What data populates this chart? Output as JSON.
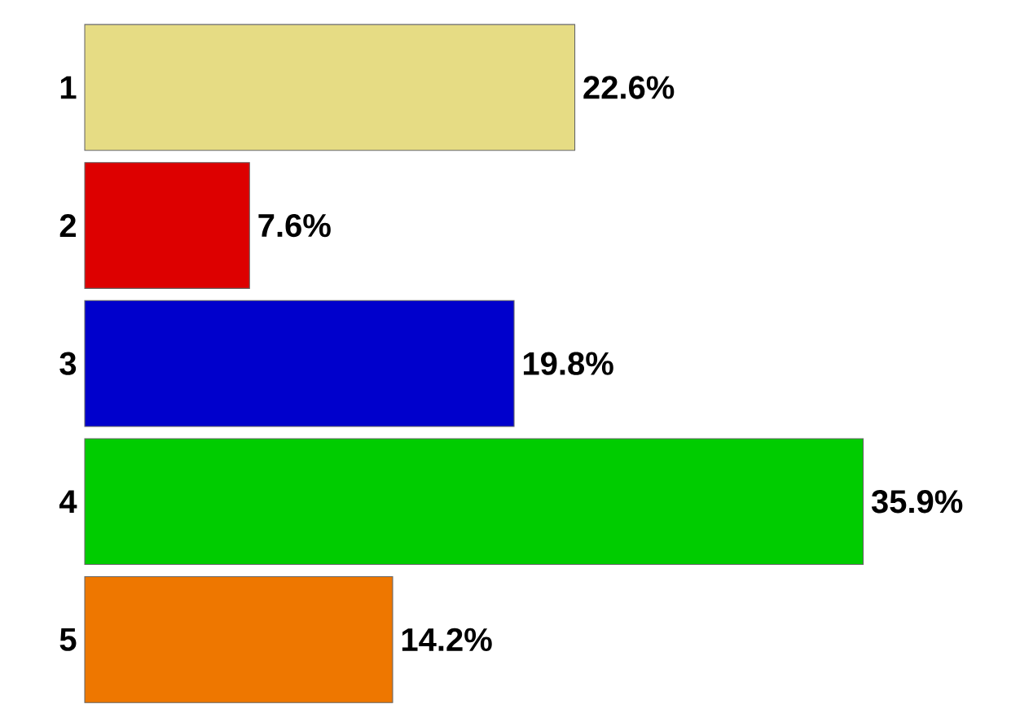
{
  "chart_data": {
    "type": "bar",
    "orientation": "horizontal",
    "categories": [
      "1",
      "2",
      "3",
      "4",
      "5"
    ],
    "values": [
      22.6,
      7.6,
      19.8,
      35.9,
      14.2
    ],
    "value_labels": [
      "22.6%",
      "7.6%",
      "19.8%",
      "35.9%",
      "14.2%"
    ],
    "colors": [
      "#e6dc84",
      "#dd0000",
      "#0000cc",
      "#00cc00",
      "#ee7700"
    ]
  }
}
